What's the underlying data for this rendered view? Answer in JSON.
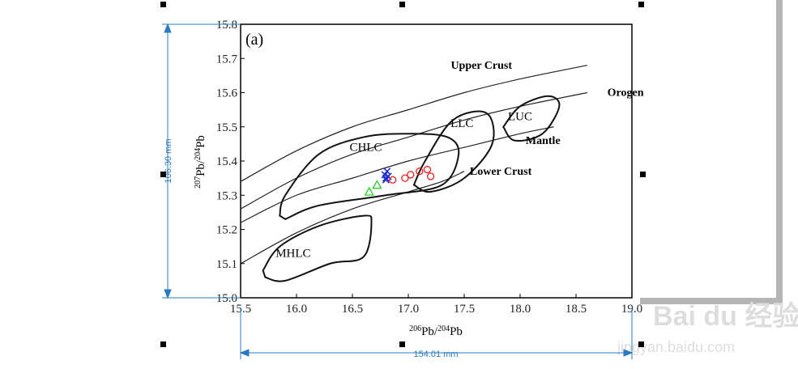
{
  "dimensions": {
    "height_label": "106.30 mm",
    "width_label": "154.01 mm"
  },
  "watermark": {
    "brand": "Bai du 经验",
    "url": "jingyan.baidu.com"
  },
  "chart_data": {
    "type": "scatter",
    "panel_label": "(a)",
    "xlabel": "206Pb/204Pb",
    "ylabel": "207Pb/204Pb",
    "xlim": [
      15.5,
      19.0
    ],
    "ylim": [
      15.0,
      15.8
    ],
    "xticks": [
      "15.5",
      "16.0",
      "16.5",
      "17.0",
      "17.5",
      "18.0",
      "18.5",
      "19.0"
    ],
    "yticks": [
      "15.0",
      "15.1",
      "15.2",
      "15.3",
      "15.4",
      "15.5",
      "15.6",
      "15.7",
      "15.8"
    ],
    "curves": [
      {
        "name": "Upper Crust",
        "points": [
          [
            15.5,
            15.34
          ],
          [
            16.0,
            15.43
          ],
          [
            16.5,
            15.5
          ],
          [
            17.0,
            15.55
          ],
          [
            17.5,
            15.6
          ],
          [
            18.0,
            15.64
          ],
          [
            18.6,
            15.68
          ]
        ]
      },
      {
        "name": "Orogen",
        "points": [
          [
            15.5,
            15.26
          ],
          [
            16.0,
            15.35
          ],
          [
            16.5,
            15.42
          ],
          [
            17.0,
            15.47
          ],
          [
            17.5,
            15.52
          ],
          [
            18.0,
            15.56
          ],
          [
            18.6,
            15.6
          ]
        ]
      },
      {
        "name": "Mantle",
        "points": [
          [
            15.5,
            15.22
          ],
          [
            16.0,
            15.3
          ],
          [
            16.5,
            15.35
          ],
          [
            17.0,
            15.4
          ],
          [
            17.5,
            15.44
          ],
          [
            18.0,
            15.48
          ],
          [
            18.3,
            15.5
          ]
        ]
      },
      {
        "name": "Lower Crust",
        "points": [
          [
            15.5,
            15.1
          ],
          [
            16.0,
            15.19
          ],
          [
            16.5,
            15.26
          ],
          [
            17.0,
            15.31
          ],
          [
            17.3,
            15.34
          ],
          [
            17.5,
            15.37
          ]
        ]
      }
    ],
    "regions": [
      {
        "name": "CHLC",
        "label_at": [
          16.62,
          15.43
        ],
        "points": [
          [
            15.85,
            15.24
          ],
          [
            15.9,
            15.3
          ],
          [
            16.2,
            15.42
          ],
          [
            16.6,
            15.47
          ],
          [
            17.0,
            15.48
          ],
          [
            17.35,
            15.47
          ],
          [
            17.45,
            15.42
          ],
          [
            17.3,
            15.33
          ],
          [
            16.8,
            15.3
          ],
          [
            16.2,
            15.27
          ],
          [
            15.9,
            15.23
          ]
        ]
      },
      {
        "name": "MHLC",
        "label_at": [
          15.97,
          15.12
        ],
        "points": [
          [
            15.7,
            15.08
          ],
          [
            15.85,
            15.15
          ],
          [
            16.2,
            15.21
          ],
          [
            16.6,
            15.24
          ],
          [
            16.67,
            15.22
          ],
          [
            16.6,
            15.12
          ],
          [
            16.3,
            15.1
          ],
          [
            15.9,
            15.05
          ],
          [
            15.72,
            15.06
          ]
        ]
      },
      {
        "name": "LLC",
        "label_at": [
          17.48,
          15.5
        ],
        "points": [
          [
            17.05,
            15.33
          ],
          [
            17.15,
            15.4
          ],
          [
            17.4,
            15.52
          ],
          [
            17.7,
            15.54
          ],
          [
            17.75,
            15.45
          ],
          [
            17.5,
            15.35
          ],
          [
            17.2,
            15.31
          ],
          [
            17.05,
            15.33
          ]
        ]
      },
      {
        "name": "LUC",
        "label_at": [
          18.0,
          15.52
        ],
        "points": [
          [
            17.85,
            15.5
          ],
          [
            18.0,
            15.56
          ],
          [
            18.25,
            15.59
          ],
          [
            18.35,
            15.56
          ],
          [
            18.2,
            15.48
          ],
          [
            17.95,
            15.46
          ],
          [
            17.85,
            15.5
          ]
        ]
      }
    ],
    "extra_labels": [
      {
        "text": "Upper Crust",
        "at": [
          17.38,
          15.67
        ]
      },
      {
        "text": "Orogen",
        "at": [
          18.78,
          15.59
        ]
      },
      {
        "text": "Mantle",
        "at": [
          18.05,
          15.45
        ]
      },
      {
        "text": "Lower Crust",
        "at": [
          17.55,
          15.36
        ]
      }
    ],
    "series": [
      {
        "name": "crosses",
        "marker": "x",
        "color": "#1a2ad6",
        "points": [
          [
            16.79,
            15.36
          ],
          [
            16.8,
            15.35
          ],
          [
            16.81,
            15.37
          ],
          [
            16.82,
            15.355
          ],
          [
            16.8,
            15.345
          ]
        ]
      },
      {
        "name": "circles",
        "marker": "o",
        "color": "#e8201c",
        "points": [
          [
            16.86,
            15.345
          ],
          [
            16.97,
            15.35
          ],
          [
            17.02,
            15.36
          ],
          [
            17.1,
            15.37
          ],
          [
            17.17,
            15.375
          ],
          [
            17.2,
            15.355
          ]
        ]
      },
      {
        "name": "triangles",
        "marker": "^",
        "color": "#20d020",
        "points": [
          [
            16.65,
            15.31
          ],
          [
            16.72,
            15.33
          ]
        ]
      }
    ]
  }
}
